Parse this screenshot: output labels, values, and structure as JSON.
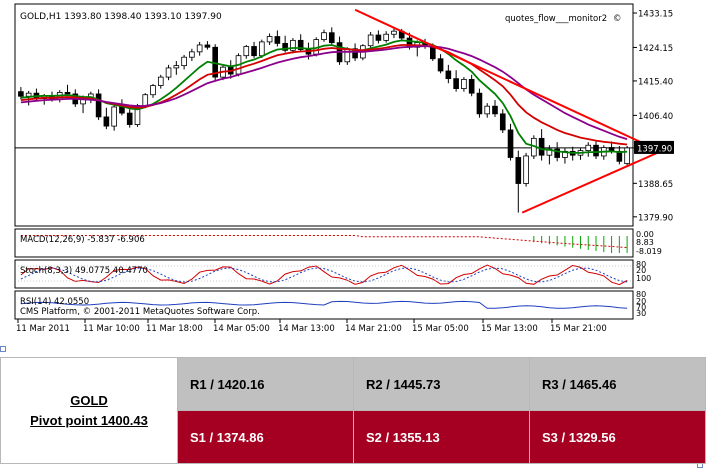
{
  "colors": {
    "candle_bull": "#ffffff",
    "candle_bear": "#000000",
    "ma_fast": "#008000",
    "ma_mid": "#d40000",
    "ma_slow": "#8b008b",
    "trendline": "#ff0000",
    "macd_hist": "#00aa00",
    "macd_signal": "#d40000",
    "stoch_main": "#d40000",
    "stoch_signal": "#1f3fbf",
    "rsi": "#1f3fbf",
    "support_row": "#a50021",
    "resistance_row": "#c0c0c0"
  },
  "chart_data": {
    "type": "candlestick",
    "symbol_header": "GOLD,H1  1393.80  1398.40  1393.10  1397.90",
    "watermark_top": "quotes_flow___monitor2",
    "copyright": "(C) MetaQuotes Software Corp.",
    "platform": "CMS Platform, © 2001-2011 MetaQuotes Software Corp.",
    "y_ticks": [
      "1433.15",
      "1424.15",
      "1415.40",
      "1406.40",
      "1397.90",
      "1388.65",
      "1379.90"
    ],
    "y_tick_values": [
      1433.15,
      1424.15,
      1415.4,
      1406.4,
      1397.9,
      1388.65,
      1379.9
    ],
    "ylim": [
      1377.5,
      1435.5
    ],
    "current_price": 1397.9,
    "x_ticks": [
      "11 Mar 2011",
      "11 Mar 10:00",
      "11 Mar 18:00",
      "14 Mar 05:00",
      "14 Mar 13:00",
      "14 Mar 21:00",
      "15 Mar 05:00",
      "15 Mar 13:00",
      "15 Mar 21:00"
    ],
    "candles": [
      [
        1412.6,
        1413.8,
        1410.6,
        1411.4
      ],
      [
        1411.4,
        1412.8,
        1409.0,
        1412.2
      ],
      [
        1412.2,
        1413.4,
        1410.4,
        1410.8
      ],
      [
        1410.8,
        1412.0,
        1409.2,
        1411.6
      ],
      [
        1411.6,
        1412.6,
        1410.0,
        1410.6
      ],
      [
        1410.6,
        1413.0,
        1409.8,
        1412.4
      ],
      [
        1412.4,
        1414.4,
        1411.6,
        1412.0
      ],
      [
        1412.0,
        1413.2,
        1408.6,
        1409.4
      ],
      [
        1409.4,
        1411.6,
        1407.0,
        1410.8
      ],
      [
        1410.8,
        1412.6,
        1409.6,
        1412.0
      ],
      [
        1412.0,
        1413.2,
        1405.2,
        1406.0
      ],
      [
        1406.0,
        1408.4,
        1402.8,
        1403.6
      ],
      [
        1403.6,
        1409.2,
        1402.4,
        1408.6
      ],
      [
        1408.6,
        1410.6,
        1406.4,
        1407.0
      ],
      [
        1407.0,
        1408.6,
        1403.2,
        1404.0
      ],
      [
        1404.0,
        1409.4,
        1403.4,
        1409.0
      ],
      [
        1409.0,
        1412.2,
        1408.4,
        1411.8
      ],
      [
        1411.8,
        1414.6,
        1411.0,
        1414.2
      ],
      [
        1414.2,
        1417.0,
        1413.4,
        1416.4
      ],
      [
        1416.4,
        1419.6,
        1415.6,
        1418.8
      ],
      [
        1418.8,
        1420.6,
        1417.0,
        1419.4
      ],
      [
        1419.4,
        1422.2,
        1418.4,
        1421.6
      ],
      [
        1421.6,
        1423.8,
        1420.6,
        1423.0
      ],
      [
        1423.0,
        1425.6,
        1422.0,
        1424.8
      ],
      [
        1424.8,
        1425.8,
        1423.6,
        1424.2
      ],
      [
        1424.2,
        1425.0,
        1415.6,
        1416.4
      ],
      [
        1416.4,
        1419.6,
        1415.6,
        1419.0
      ],
      [
        1419.0,
        1420.8,
        1416.0,
        1417.2
      ],
      [
        1417.2,
        1422.6,
        1416.6,
        1422.0
      ],
      [
        1422.0,
        1424.8,
        1421.2,
        1424.4
      ],
      [
        1424.4,
        1425.6,
        1421.4,
        1422.0
      ],
      [
        1422.0,
        1426.2,
        1421.4,
        1425.6
      ],
      [
        1425.6,
        1427.8,
        1424.8,
        1427.0
      ],
      [
        1427.0,
        1428.6,
        1424.4,
        1425.2
      ],
      [
        1425.2,
        1427.2,
        1422.8,
        1423.4
      ],
      [
        1423.4,
        1426.6,
        1422.6,
        1426.0
      ],
      [
        1426.0,
        1427.6,
        1423.0,
        1423.6
      ],
      [
        1423.6,
        1425.4,
        1421.0,
        1422.4
      ],
      [
        1422.4,
        1426.8,
        1421.8,
        1426.2
      ],
      [
        1426.2,
        1428.8,
        1425.6,
        1428.0
      ],
      [
        1428.0,
        1429.4,
        1424.6,
        1425.4
      ],
      [
        1425.4,
        1427.0,
        1419.6,
        1420.4
      ],
      [
        1420.4,
        1424.2,
        1419.6,
        1423.8
      ],
      [
        1423.8,
        1425.2,
        1420.6,
        1421.4
      ],
      [
        1421.4,
        1425.0,
        1420.8,
        1424.6
      ],
      [
        1424.6,
        1428.2,
        1424.0,
        1427.4
      ],
      [
        1427.4,
        1428.6,
        1425.2,
        1426.0
      ],
      [
        1426.0,
        1428.4,
        1425.4,
        1427.6
      ],
      [
        1427.6,
        1429.2,
        1426.6,
        1428.4
      ],
      [
        1428.4,
        1429.0,
        1425.8,
        1426.6
      ],
      [
        1426.6,
        1428.0,
        1423.6,
        1424.2
      ],
      [
        1424.2,
        1426.0,
        1421.8,
        1425.4
      ],
      [
        1425.4,
        1426.4,
        1423.8,
        1424.6
      ],
      [
        1424.6,
        1425.2,
        1420.6,
        1421.2
      ],
      [
        1421.2,
        1422.4,
        1417.4,
        1418.0
      ],
      [
        1418.0,
        1419.6,
        1414.8,
        1416.0
      ],
      [
        1416.0,
        1418.2,
        1412.6,
        1413.4
      ],
      [
        1413.4,
        1416.4,
        1412.6,
        1415.8
      ],
      [
        1415.8,
        1417.0,
        1411.4,
        1412.2
      ],
      [
        1412.2,
        1413.4,
        1405.8,
        1406.8
      ],
      [
        1406.8,
        1409.6,
        1405.8,
        1408.8
      ],
      [
        1408.8,
        1410.4,
        1406.0,
        1406.8
      ],
      [
        1406.8,
        1408.0,
        1401.8,
        1402.6
      ],
      [
        1402.6,
        1404.2,
        1394.6,
        1395.4
      ],
      [
        1395.4,
        1397.2,
        1381.0,
        1388.6
      ],
      [
        1388.6,
        1396.6,
        1387.8,
        1395.8
      ],
      [
        1395.8,
        1401.2,
        1395.0,
        1400.4
      ],
      [
        1400.4,
        1402.8,
        1394.6,
        1396.0
      ],
      [
        1396.0,
        1398.6,
        1393.6,
        1397.6
      ],
      [
        1397.6,
        1399.4,
        1394.4,
        1395.4
      ],
      [
        1395.4,
        1397.8,
        1393.8,
        1397.0
      ],
      [
        1397.0,
        1398.2,
        1394.6,
        1396.0
      ],
      [
        1396.0,
        1398.0,
        1394.8,
        1397.2
      ],
      [
        1397.2,
        1399.4,
        1395.6,
        1398.6
      ],
      [
        1398.6,
        1399.6,
        1395.0,
        1395.8
      ],
      [
        1395.8,
        1398.6,
        1394.8,
        1398.0
      ],
      [
        1398.0,
        1399.6,
        1396.4,
        1397.0
      ],
      [
        1397.0,
        1398.4,
        1393.6,
        1394.4
      ],
      [
        1393.8,
        1398.4,
        1393.1,
        1397.9
      ]
    ],
    "moving_averages": [
      {
        "color": "#008000",
        "values": [
          1411.0,
          1411.2,
          1411.4,
          1411.5,
          1411.5,
          1411.6,
          1411.7,
          1411.5,
          1411.2,
          1411.2,
          1410.5,
          1409.6,
          1409.2,
          1408.8,
          1408.2,
          1408.0,
          1408.5,
          1409.4,
          1410.6,
          1412.0,
          1413.6,
          1415.4,
          1417.2,
          1419.0,
          1420.4,
          1420.0,
          1419.6,
          1419.2,
          1419.6,
          1420.4,
          1421.0,
          1421.8,
          1422.8,
          1423.6,
          1423.8,
          1424.0,
          1424.0,
          1423.8,
          1424.0,
          1424.6,
          1424.8,
          1424.2,
          1423.8,
          1423.4,
          1423.4,
          1423.9,
          1424.4,
          1424.9,
          1425.6,
          1426.0,
          1425.8,
          1425.6,
          1425.4,
          1424.8,
          1423.8,
          1422.4,
          1420.8,
          1419.4,
          1417.8,
          1415.6,
          1413.8,
          1412.0,
          1409.6,
          1406.2,
          1401.8,
          1399.0,
          1398.4,
          1397.6,
          1397.4,
          1397.0,
          1396.8,
          1396.6,
          1396.6,
          1396.8,
          1396.8,
          1396.9,
          1397.0,
          1396.8,
          1396.9
        ]
      },
      {
        "color": "#d40000",
        "values": [
          1410.4,
          1410.6,
          1410.8,
          1411.0,
          1411.0,
          1411.1,
          1411.2,
          1411.1,
          1410.9,
          1410.8,
          1410.4,
          1409.8,
          1409.4,
          1409.0,
          1408.6,
          1408.4,
          1408.6,
          1409.1,
          1409.8,
          1410.7,
          1411.8,
          1413.0,
          1414.4,
          1415.8,
          1417.0,
          1417.4,
          1417.8,
          1418.0,
          1418.6,
          1419.3,
          1419.9,
          1420.6,
          1421.4,
          1422.1,
          1422.5,
          1422.9,
          1423.1,
          1423.2,
          1423.4,
          1423.8,
          1424.0,
          1423.8,
          1423.7,
          1423.5,
          1423.4,
          1423.6,
          1423.8,
          1424.1,
          1424.5,
          1424.8,
          1424.8,
          1424.7,
          1424.6,
          1424.3,
          1423.7,
          1422.9,
          1421.9,
          1420.9,
          1419.8,
          1418.4,
          1417.0,
          1415.6,
          1414.0,
          1411.8,
          1409.2,
          1407.2,
          1405.8,
          1404.6,
          1403.6,
          1402.6,
          1401.8,
          1401.2,
          1400.6,
          1400.2,
          1399.8,
          1399.5,
          1399.3,
          1399.0,
          1398.8
        ]
      },
      {
        "color": "#8b008b",
        "values": [
          1409.8,
          1410.0,
          1410.2,
          1410.4,
          1410.5,
          1410.6,
          1410.7,
          1410.7,
          1410.6,
          1410.5,
          1410.3,
          1409.9,
          1409.6,
          1409.3,
          1409.0,
          1408.8,
          1408.9,
          1409.2,
          1409.6,
          1410.2,
          1410.9,
          1411.8,
          1412.8,
          1413.8,
          1414.8,
          1415.4,
          1416.0,
          1416.4,
          1417.0,
          1417.6,
          1418.2,
          1418.8,
          1419.5,
          1420.2,
          1420.7,
          1421.2,
          1421.6,
          1421.9,
          1422.2,
          1422.6,
          1422.9,
          1423.0,
          1423.0,
          1423.0,
          1423.0,
          1423.2,
          1423.4,
          1423.6,
          1423.9,
          1424.2,
          1424.3,
          1424.4,
          1424.5,
          1424.4,
          1424.2,
          1423.8,
          1423.2,
          1422.6,
          1421.9,
          1421.0,
          1420.0,
          1419.0,
          1417.8,
          1416.4,
          1414.8,
          1413.2,
          1411.8,
          1410.6,
          1409.4,
          1408.2,
          1407.0,
          1406.0,
          1405.0,
          1404.0,
          1403.2,
          1402.4,
          1401.6,
          1400.8,
          1400.2
        ]
      }
    ],
    "trendlines": [
      {
        "from": {
          "bar": 43,
          "price": 1434.0
        },
        "to": {
          "bar": 80,
          "price": 1397.0
        }
      },
      {
        "from": {
          "bar": 64.5,
          "price": 1381.0
        },
        "to": {
          "bar": 80,
          "price": 1397.0
        }
      }
    ],
    "indicators": [
      {
        "label": "MACD(12,26,9) -5.837 -6.906",
        "ticks": [
          "0.00",
          "8.83",
          "-8.019"
        ]
      },
      {
        "label": "Stoch(8,3,3) 49.0775 40.4770",
        "ticks": [
          "80",
          "20",
          "100"
        ]
      },
      {
        "label": "RSI(14) 42.0550",
        "ticks": [
          "80",
          "20",
          "70",
          "30"
        ]
      }
    ]
  },
  "pivot_table": {
    "symbol": "GOLD",
    "pivot": "Pivot point 1400.43",
    "resistance": [
      "R1 / 1420.16",
      "R2 / 1445.73",
      "R3 / 1465.46"
    ],
    "support": [
      "S1 / 1374.86",
      "S2 / 1355.13",
      "S3 / 1329.56"
    ]
  }
}
